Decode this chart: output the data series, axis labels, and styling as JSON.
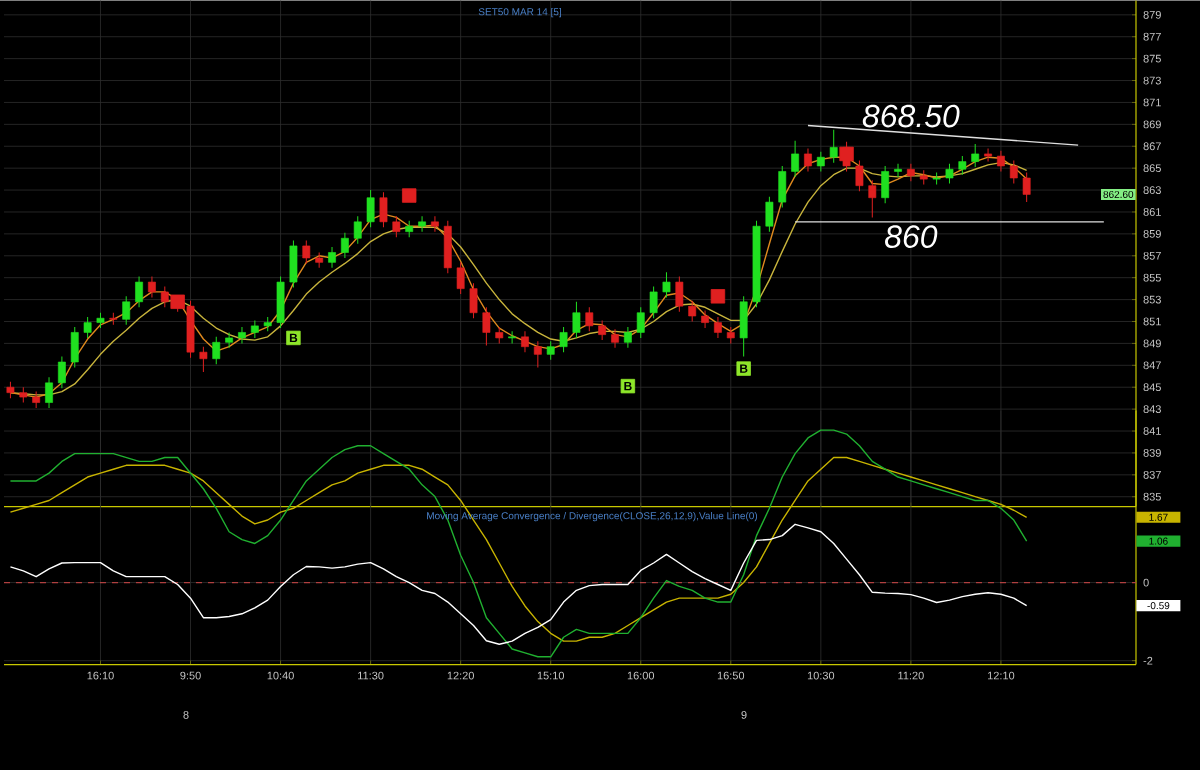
{
  "chart_data": [
    {
      "type": "candlestick",
      "title": "SET50 MAR 14  [5]",
      "categories": [
        null,
        null,
        null,
        null,
        null,
        null,
        null,
        "16:10",
        null,
        null,
        null,
        null,
        null,
        null,
        "9:50",
        null,
        null,
        null,
        null,
        null,
        null,
        "10:40",
        null,
        null,
        null,
        null,
        null,
        null,
        "11:30",
        null,
        null,
        null,
        null,
        null,
        null,
        "12:20",
        null,
        null,
        null,
        null,
        null,
        null,
        "15:10",
        null,
        null,
        null,
        null,
        null,
        null,
        "16:00",
        null,
        null,
        null,
        null,
        null,
        null,
        "16:50",
        null,
        null,
        null,
        null,
        null,
        null,
        "10:30",
        null,
        null,
        null,
        null,
        null,
        null,
        "11:20",
        null,
        null,
        null,
        null,
        null,
        null,
        "12:10",
        null,
        null,
        null,
        null,
        null,
        null,
        null,
        null
      ],
      "series": [
        {
          "type": "line",
          "color": "#c8b43c",
          "values": [
            844.5,
            844.4,
            844.3,
            844.3,
            844.6,
            845.3,
            846.6,
            848.0,
            849.2,
            850.2,
            851.3,
            852.2,
            852.8,
            853.0,
            852.4,
            851.3,
            850.4,
            849.8,
            849.4,
            849.3,
            849.6,
            850.6,
            852.0,
            853.5,
            854.6,
            855.5,
            856.3,
            857.2,
            858.3,
            859.0,
            859.4,
            859.6,
            859.6,
            859.6,
            859.0,
            857.8,
            856.2,
            854.5,
            853.0,
            851.7,
            850.8,
            850.0,
            849.4,
            849.2,
            849.5,
            849.9,
            850.1,
            850.1,
            850.0,
            850.3,
            851.0,
            851.9,
            852.5,
            852.6,
            852.3,
            851.7,
            851.1,
            851.1,
            852.6,
            854.8,
            857.4,
            859.9,
            861.9,
            863.4,
            864.4,
            865.0,
            865.0,
            864.5,
            864.3,
            864.2,
            864.3,
            864.3,
            864.2,
            864.3,
            864.5,
            864.9,
            865.3,
            865.5,
            865.3,
            864.8,
            null,
            null,
            null,
            null,
            null,
            null
          ]
        },
        {
          "type": "line",
          "color": "#e08a1e",
          "values": [
            844.5,
            844.3,
            844.1,
            844.4,
            845.4,
            847.6,
            849.4,
            850.7,
            851.2,
            851.8,
            852.9,
            853.7,
            853.7,
            853.0,
            851.1,
            849.4,
            848.3,
            848.7,
            849.5,
            850.0,
            850.5,
            852.0,
            854.5,
            856.4,
            857.0,
            856.8,
            857.4,
            858.7,
            860.3,
            860.8,
            860.5,
            859.7,
            859.7,
            859.8,
            858.6,
            856.5,
            853.9,
            851.9,
            850.4,
            849.7,
            849.2,
            848.7,
            848.5,
            848.9,
            850.2,
            850.8,
            850.7,
            849.8,
            849.6,
            850.3,
            851.8,
            853.4,
            853.6,
            852.8,
            851.6,
            850.8,
            850.1,
            850.8,
            854.0,
            858.1,
            862.1,
            864.3,
            865.4,
            865.8,
            866.0,
            866.0,
            865.2,
            863.6,
            863.5,
            864.0,
            864.6,
            864.4,
            864.1,
            864.3,
            864.9,
            865.6,
            866.0,
            865.9,
            865.1,
            864.0,
            null,
            null,
            null,
            null,
            null,
            null
          ]
        },
        {
          "type": "line",
          "color": "#e0e0e0",
          "values": [
            null,
            null,
            null,
            null,
            null,
            null,
            null,
            null,
            null,
            null,
            null,
            null,
            null,
            null,
            null,
            null,
            null,
            null,
            null,
            null,
            null,
            null,
            null,
            null,
            null,
            null,
            null,
            null,
            null,
            null,
            null,
            null,
            null,
            null,
            null,
            null,
            null,
            null,
            null,
            null,
            null,
            null,
            null,
            null,
            null,
            null,
            null,
            null,
            null,
            null,
            null,
            null,
            null,
            null,
            null,
            null,
            null,
            null,
            null,
            null,
            null,
            null,
            868.9,
            null,
            null,
            null,
            null,
            null,
            null,
            null,
            null,
            null,
            null,
            null,
            null,
            null,
            null,
            null,
            null,
            null,
            null,
            null,
            null,
            867.1,
            null,
            null
          ]
        },
        {
          "type": "line",
          "color": "#e0e0e0",
          "values": [
            null,
            null,
            null,
            null,
            null,
            null,
            null,
            null,
            null,
            null,
            null,
            null,
            null,
            null,
            null,
            null,
            null,
            null,
            null,
            null,
            null,
            null,
            null,
            null,
            null,
            null,
            null,
            null,
            null,
            null,
            null,
            null,
            null,
            null,
            null,
            null,
            null,
            null,
            null,
            null,
            null,
            null,
            null,
            null,
            null,
            null,
            null,
            null,
            null,
            null,
            null,
            null,
            null,
            null,
            null,
            null,
            null,
            null,
            null,
            null,
            null,
            860.1,
            null,
            null,
            null,
            null,
            null,
            null,
            null,
            null,
            null,
            null,
            null,
            null,
            null,
            null,
            null,
            null,
            null,
            null,
            null,
            null,
            null,
            null,
            null,
            860.1
          ]
        },
        {
          "type": "scatter",
          "marker": "square",
          "color": "#e02020",
          "values": [
            null,
            null,
            null,
            null,
            null,
            null,
            null,
            null,
            null,
            null,
            null,
            null,
            null,
            852.8,
            null,
            null,
            null,
            null,
            null,
            null,
            null,
            null,
            null,
            null,
            null,
            null,
            null,
            null,
            null,
            null,
            null,
            862.5,
            null,
            null,
            null,
            null,
            null,
            null,
            null,
            null,
            null,
            null,
            null,
            null,
            null,
            null,
            null,
            null,
            null,
            null,
            null,
            null,
            null,
            null,
            null,
            853.3,
            null,
            null,
            null,
            null,
            null,
            null,
            null,
            null,
            null,
            866.3,
            null,
            null,
            null,
            null,
            null,
            null,
            null,
            null,
            null,
            null,
            null,
            null,
            null,
            null,
            null,
            null,
            null,
            null,
            null,
            null
          ]
        },
        {
          "type": "scatter",
          "marker": "square",
          "color": "#8ee62a",
          "values": [
            null,
            null,
            null,
            null,
            null,
            null,
            null,
            null,
            null,
            null,
            null,
            null,
            null,
            null,
            null,
            null,
            null,
            null,
            null,
            null,
            null,
            null,
            849.5,
            null,
            null,
            null,
            null,
            null,
            null,
            null,
            null,
            null,
            null,
            null,
            null,
            null,
            null,
            null,
            null,
            null,
            null,
            null,
            null,
            null,
            null,
            null,
            null,
            null,
            845.1,
            null,
            null,
            null,
            null,
            null,
            null,
            null,
            null,
            846.7,
            null,
            null,
            null,
            null,
            null,
            null,
            null,
            null,
            null,
            null,
            null,
            null,
            null,
            null,
            null,
            null,
            null,
            null,
            null,
            null,
            null,
            null,
            null,
            null,
            null,
            null,
            null,
            null
          ],
          "value_labels": [
            null,
            null,
            null,
            null,
            null,
            null,
            null,
            null,
            null,
            null,
            null,
            null,
            null,
            null,
            null,
            null,
            null,
            null,
            null,
            null,
            null,
            null,
            "B",
            null,
            null,
            null,
            null,
            null,
            null,
            null,
            null,
            null,
            null,
            null,
            null,
            null,
            null,
            null,
            null,
            null,
            null,
            null,
            null,
            null,
            null,
            null,
            null,
            null,
            "B",
            null,
            null,
            null,
            null,
            null,
            null,
            null,
            null,
            "B",
            null,
            null,
            null,
            null,
            null,
            null,
            null,
            null,
            null,
            null,
            null,
            null,
            null,
            null,
            null,
            null,
            null,
            null,
            null,
            null,
            null,
            null,
            null,
            null,
            null,
            null,
            null,
            null
          ]
        },
        {
          "type": "candlestick",
          "color": "#20e020",
          "ohlc": [
            null,
            null,
            null,
            [
              843.6,
              845.9,
              843.1,
              845.4
            ],
            [
              845.4,
              847.8,
              844.9,
              847.3
            ],
            [
              847.3,
              850.5,
              846.8,
              850.0
            ],
            [
              850.0,
              851.4,
              849.5,
              850.9
            ],
            [
              850.9,
              851.8,
              850.4,
              851.3
            ],
            null,
            [
              851.2,
              853.3,
              850.7,
              852.8
            ],
            [
              852.8,
              855.1,
              852.3,
              854.6
            ],
            null,
            null,
            null,
            null,
            null,
            [
              847.6,
              849.6,
              847.1,
              849.1
            ],
            [
              849.1,
              850.0,
              848.6,
              849.5
            ],
            [
              849.5,
              850.5,
              849.0,
              850.0
            ],
            [
              850.0,
              851.1,
              849.5,
              850.6
            ],
            [
              850.6,
              851.4,
              850.1,
              850.9
            ],
            [
              850.9,
              855.1,
              850.4,
              854.6
            ],
            [
              854.6,
              858.4,
              854.1,
              857.9
            ],
            null,
            null,
            [
              856.4,
              857.8,
              855.9,
              857.3
            ],
            [
              857.3,
              859.1,
              856.8,
              858.6
            ],
            [
              858.6,
              860.6,
              858.1,
              860.1
            ],
            [
              860.1,
              863.0,
              859.6,
              862.3
            ],
            null,
            null,
            [
              859.2,
              860.2,
              858.7,
              859.7
            ],
            [
              859.7,
              860.6,
              859.2,
              860.1
            ],
            null,
            null,
            null,
            null,
            null,
            null,
            [
              849.5,
              850.1,
              849.0,
              849.6
            ],
            null,
            null,
            [
              848.0,
              849.2,
              847.5,
              848.7
            ],
            [
              848.7,
              850.5,
              848.2,
              850.0
            ],
            [
              850.0,
              852.8,
              849.5,
              851.8
            ],
            null,
            null,
            null,
            [
              849.1,
              850.5,
              848.6,
              850.0
            ],
            [
              850.0,
              852.3,
              849.5,
              851.8
            ],
            [
              851.8,
              854.2,
              851.3,
              853.7
            ],
            [
              853.7,
              855.5,
              853.2,
              854.6
            ],
            null,
            null,
            null,
            null,
            null,
            [
              849.5,
              853.3,
              847.8,
              852.8
            ],
            [
              852.8,
              860.2,
              852.3,
              859.7
            ],
            [
              859.7,
              862.4,
              859.2,
              861.9
            ],
            [
              861.9,
              865.2,
              861.4,
              864.7
            ],
            [
              864.7,
              867.5,
              864.2,
              866.3
            ],
            null,
            [
              865.2,
              866.5,
              864.7,
              866.0
            ],
            [
              866.0,
              868.5,
              865.5,
              866.9
            ],
            null,
            null,
            null,
            [
              862.3,
              865.2,
              861.8,
              864.7
            ],
            [
              864.7,
              865.4,
              864.2,
              864.9
            ],
            null,
            null,
            [
              864.0,
              864.6,
              863.5,
              864.1
            ],
            [
              864.1,
              865.4,
              863.6,
              864.9
            ],
            [
              864.9,
              866.1,
              864.4,
              865.6
            ],
            [
              865.6,
              867.2,
              865.1,
              866.3
            ],
            null,
            null,
            null,
            null,
            null,
            null,
            null,
            null,
            null,
            null
          ]
        },
        {
          "type": "candlestick",
          "color": "#e02020",
          "ohlc": [
            [
              845.0,
              845.5,
              844.0,
              844.5
            ],
            [
              844.5,
              845.0,
              843.6,
              844.1
            ],
            [
              844.1,
              844.6,
              843.1,
              843.6
            ],
            null,
            null,
            null,
            null,
            null,
            [
              851.3,
              851.8,
              850.7,
              851.2
            ],
            null,
            null,
            [
              854.6,
              855.1,
              853.2,
              853.7
            ],
            [
              853.7,
              854.2,
              852.3,
              852.8
            ],
            [
              852.8,
              853.3,
              851.9,
              852.4
            ],
            [
              852.4,
              852.9,
              847.7,
              848.2
            ],
            [
              848.2,
              848.7,
              846.4,
              847.6
            ],
            null,
            null,
            null,
            null,
            null,
            null,
            null,
            [
              857.9,
              858.4,
              856.3,
              856.8
            ],
            [
              856.8,
              857.3,
              855.9,
              856.4
            ],
            null,
            null,
            null,
            null,
            [
              862.3,
              862.8,
              859.6,
              860.1
            ],
            [
              860.1,
              860.6,
              858.7,
              859.2
            ],
            null,
            null,
            [
              860.1,
              860.6,
              859.2,
              859.7
            ],
            [
              859.7,
              860.2,
              855.4,
              855.9
            ],
            [
              855.9,
              856.4,
              853.5,
              854.0
            ],
            [
              854.0,
              854.5,
              851.3,
              851.8
            ],
            [
              851.8,
              852.3,
              848.8,
              850.0
            ],
            [
              850.0,
              850.5,
              849.0,
              849.5
            ],
            null,
            [
              849.6,
              850.1,
              848.2,
              848.7
            ],
            [
              848.7,
              849.2,
              846.8,
              848.0
            ],
            null,
            null,
            null,
            [
              851.8,
              852.3,
              850.1,
              850.6
            ],
            [
              850.6,
              851.1,
              849.3,
              849.8
            ],
            [
              849.8,
              850.3,
              848.6,
              849.1
            ],
            null,
            null,
            null,
            null,
            [
              854.6,
              855.1,
              851.9,
              852.4
            ],
            [
              852.4,
              852.9,
              851.0,
              851.5
            ],
            [
              851.5,
              852.0,
              850.4,
              850.9
            ],
            [
              850.9,
              851.4,
              849.5,
              850.0
            ],
            [
              850.0,
              850.5,
              849.0,
              849.5
            ],
            null,
            null,
            null,
            null,
            null,
            [
              866.3,
              866.8,
              864.7,
              865.2
            ],
            null,
            null,
            [
              866.9,
              867.4,
              864.7,
              865.2
            ],
            [
              865.2,
              865.7,
              862.9,
              863.4
            ],
            [
              863.4,
              863.9,
              860.5,
              862.3
            ],
            null,
            null,
            [
              864.9,
              865.4,
              863.8,
              864.3
            ],
            [
              864.3,
              864.8,
              863.5,
              864.0
            ],
            null,
            null,
            null,
            null,
            [
              866.3,
              866.8,
              865.6,
              866.1
            ],
            [
              866.1,
              866.6,
              864.7,
              865.2
            ],
            [
              865.2,
              865.7,
              863.6,
              864.1
            ],
            [
              864.1,
              864.6,
              861.9,
              862.6
            ],
            null,
            null,
            null,
            null,
            null,
            null
          ]
        }
      ],
      "ylim": [
        834.1,
        880.3
      ],
      "yticks": [
        835,
        837,
        839,
        841,
        843,
        845,
        847,
        849,
        851,
        853,
        855,
        857,
        859,
        861,
        863,
        865,
        867,
        869,
        871,
        873,
        875,
        877,
        879
      ],
      "grid": true,
      "tick_labels": "y",
      "annotations": [
        {
          "text": "868.50",
          "x": "11:20",
          "y": 868.5
        },
        {
          "text": "860",
          "x": "11:20",
          "y": 860
        },
        {
          "text": "862.60",
          "y": 862.6
        }
      ]
    },
    {
      "type": "line",
      "title": "Moving Average Convergence / Divergence(CLOSE,26,12,9),Value Line(0)",
      "categories": [
        null,
        null,
        null,
        null,
        null,
        null,
        null,
        "16:10",
        null,
        null,
        null,
        null,
        null,
        null,
        "9:50",
        null,
        null,
        null,
        null,
        null,
        null,
        "10:40",
        null,
        null,
        null,
        null,
        null,
        null,
        "11:30",
        null,
        null,
        null,
        null,
        null,
        null,
        "12:20",
        null,
        null,
        null,
        null,
        null,
        null,
        "15:10",
        null,
        null,
        null,
        null,
        null,
        null,
        "16:00",
        null,
        null,
        null,
        null,
        null,
        null,
        "16:50",
        null,
        null,
        null,
        null,
        null,
        null,
        "10:30",
        null,
        null,
        null,
        null,
        null,
        null,
        "11:20",
        null,
        null,
        null,
        null,
        null,
        null,
        "12:10",
        null,
        null,
        null,
        null,
        null,
        null,
        null,
        null
      ],
      "series": [
        {
          "color": "#c8b400",
          "values": [
            1.8,
            1.9,
            2.0,
            2.1,
            2.3,
            2.5,
            2.7,
            2.8,
            2.9,
            3.0,
            3.0,
            3.0,
            3.0,
            2.9,
            2.8,
            2.6,
            2.3,
            2.0,
            1.7,
            1.5,
            1.6,
            1.8,
            1.9,
            2.1,
            2.3,
            2.5,
            2.6,
            2.8,
            2.9,
            3.0,
            3.0,
            3.0,
            2.9,
            2.7,
            2.5,
            2.1,
            1.6,
            1.1,
            0.5,
            -0.1,
            -0.6,
            -1.0,
            -1.3,
            -1.5,
            -1.5,
            -1.4,
            -1.4,
            -1.3,
            -1.1,
            -0.9,
            -0.7,
            -0.5,
            -0.4,
            -0.4,
            -0.4,
            -0.4,
            -0.3,
            0.0,
            0.4,
            1.0,
            1.6,
            2.1,
            2.6,
            2.9,
            3.2,
            3.2,
            3.1,
            3.0,
            2.9,
            2.8,
            2.7,
            2.6,
            2.5,
            2.4,
            2.3,
            2.2,
            2.1,
            2.0,
            1.85,
            1.67,
            null,
            null,
            null,
            null,
            null,
            null
          ]
        },
        {
          "color": "#20b030",
          "values": [
            2.6,
            2.6,
            2.6,
            2.8,
            3.1,
            3.3,
            3.3,
            3.3,
            3.3,
            3.2,
            3.1,
            3.1,
            3.2,
            3.2,
            2.8,
            2.4,
            1.9,
            1.3,
            1.1,
            1.0,
            1.2,
            1.6,
            2.1,
            2.6,
            2.9,
            3.2,
            3.4,
            3.5,
            3.5,
            3.3,
            3.1,
            2.9,
            2.5,
            2.2,
            1.6,
            0.7,
            0.0,
            -0.9,
            -1.3,
            -1.7,
            -1.8,
            -1.9,
            -1.9,
            -1.4,
            -1.2,
            -1.3,
            -1.3,
            -1.3,
            -1.3,
            -0.9,
            -0.4,
            0.05,
            -0.1,
            -0.2,
            -0.4,
            -0.5,
            -0.5,
            0.2,
            1.2,
            1.9,
            2.7,
            3.3,
            3.7,
            3.9,
            3.9,
            3.8,
            3.5,
            3.1,
            2.9,
            2.7,
            2.6,
            2.5,
            2.4,
            2.3,
            2.2,
            2.1,
            2.1,
            1.9,
            1.6,
            1.06,
            null,
            null,
            null,
            null,
            null,
            null
          ]
        },
        {
          "color": "#ffffff",
          "values": [
            0.4,
            0.3,
            0.15,
            0.35,
            0.5,
            0.51,
            0.51,
            0.51,
            0.3,
            0.15,
            0.15,
            0.15,
            0.15,
            -0.05,
            -0.4,
            -0.9,
            -0.9,
            -0.87,
            -0.8,
            -0.65,
            -0.45,
            -0.1,
            0.2,
            0.41,
            0.4,
            0.37,
            0.4,
            0.47,
            0.51,
            0.35,
            0.15,
            0.0,
            -0.2,
            -0.28,
            -0.5,
            -0.8,
            -1.1,
            -1.49,
            -1.58,
            -1.5,
            -1.3,
            -1.15,
            -0.95,
            -0.5,
            -0.2,
            -0.08,
            -0.05,
            -0.05,
            -0.05,
            0.31,
            0.5,
            0.72,
            0.5,
            0.28,
            0.1,
            -0.05,
            -0.2,
            0.5,
            1.08,
            1.1,
            1.2,
            1.49,
            1.4,
            1.3,
            1.0,
            0.6,
            0.2,
            -0.25,
            -0.27,
            -0.28,
            -0.31,
            -0.4,
            -0.51,
            -0.45,
            -0.36,
            -0.3,
            -0.26,
            -0.3,
            -0.4,
            -0.59,
            null,
            null,
            null,
            null,
            null,
            null
          ]
        }
      ],
      "ylim": [
        -2.1,
        4.4
      ],
      "yticks": [
        0,
        -2
      ],
      "grid": true,
      "ref_lines": [
        {
          "axis": "y",
          "value": 0,
          "color": "#b04040",
          "line_style": "dashed"
        }
      ],
      "annotations": [
        "1.67",
        "1.06",
        "-0.59",
        "8",
        "9"
      ]
    }
  ]
}
